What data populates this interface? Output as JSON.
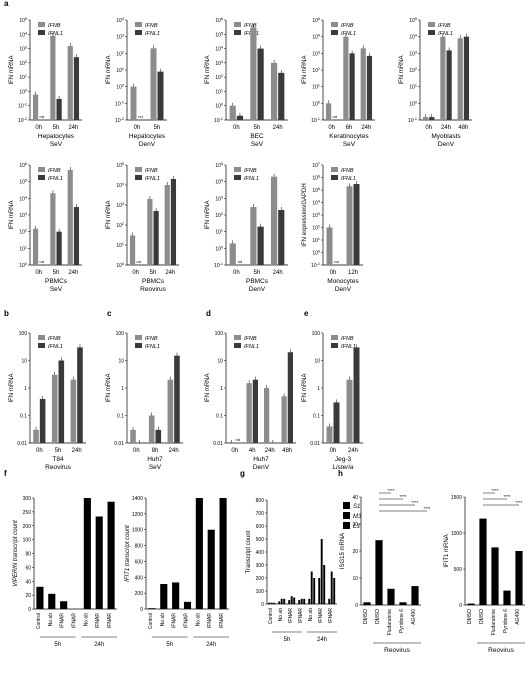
{
  "colors": {
    "ifnb": "#8c8c8c",
    "ifnl1": "#3a3a3a",
    "bar_black": "#000000",
    "axis": "#000000"
  },
  "chart_data": [
    {
      "id": "a1",
      "type": "bar",
      "panel_label": "a",
      "ylabel": "IFN mRNA",
      "ylim": [
        0.01,
        100000
      ],
      "log": true,
      "yticks": [
        "10^-2",
        "10^-1",
        "10^0",
        "10^1",
        "10^2",
        "10^3",
        "10^4",
        "10^5"
      ],
      "categories": [
        "0h",
        "5h",
        "24h"
      ],
      "caption": [
        "Hepatocytes",
        "SeV"
      ],
      "legend": [
        "IFNB",
        "IFNL1"
      ],
      "series": [
        {
          "name": "IFNB",
          "values": [
            0.6,
            8000,
            1500
          ]
        },
        {
          "name": "IFNL1",
          "values": [
            null,
            0.3,
            250
          ]
        }
      ],
      "annotations": [
        "nd",
        "ns"
      ]
    },
    {
      "id": "a2",
      "type": "bar",
      "ylabel": "IFN mRNA",
      "ylim": [
        0.01,
        10000
      ],
      "log": true,
      "categories": [
        "0h",
        "5h"
      ],
      "caption": [
        "Hepatocytes",
        "DenV"
      ],
      "legend": [
        "IFNB",
        "IFNL1"
      ],
      "series": [
        {
          "name": "IFNB",
          "values": [
            1,
            200
          ]
        },
        {
          "name": "IFNL1",
          "values": [
            null,
            8
          ]
        }
      ],
      "annotations": [
        "nd"
      ]
    },
    {
      "id": "a3",
      "type": "bar",
      "ylabel": "IFN mRNA",
      "ylim": [
        0.1,
        1000000
      ],
      "log": true,
      "categories": [
        "0h",
        "5h",
        "24h"
      ],
      "caption": [
        "BEC",
        "SeV"
      ],
      "legend": [
        "IFNB",
        "IFNL1"
      ],
      "series": [
        {
          "name": "IFNB",
          "values": [
            1,
            300000,
            1000
          ]
        },
        {
          "name": "IFNL1",
          "values": [
            0.2,
            10000,
            200
          ]
        }
      ],
      "annotations": [
        "nd"
      ]
    },
    {
      "id": "a4",
      "type": "bar",
      "ylabel": "IFN mRNA",
      "ylim": [
        0.1,
        100000
      ],
      "log": true,
      "categories": [
        "0h",
        "6h",
        "24h"
      ],
      "caption": [
        "Keratinocytes",
        "SeV"
      ],
      "legend": [
        "IFNB",
        "IFNL1"
      ],
      "series": [
        {
          "name": "IFNB",
          "values": [
            1,
            10000,
            2000
          ]
        },
        {
          "name": "IFNL1",
          "values": [
            null,
            1000,
            700
          ]
        }
      ],
      "annotations": [
        "nd"
      ]
    },
    {
      "id": "a5",
      "type": "bar",
      "ylabel": "IFN mRNA",
      "ylim": [
        0.1,
        100000
      ],
      "log": true,
      "categories": [
        "0h",
        "24h",
        "48h"
      ],
      "caption": [
        "Myoblasts",
        "DenV"
      ],
      "legend": [
        "IFNB",
        "IFNL1"
      ],
      "series": [
        {
          "name": "IFNB",
          "values": [
            0.15,
            10000,
            8000
          ]
        },
        {
          "name": "IFNL1",
          "values": [
            0.15,
            1500,
            10000
          ]
        }
      ],
      "annotations": [
        "nd"
      ]
    },
    {
      "id": "a6",
      "type": "bar",
      "ylabel": "IFN mRNA",
      "ylim": [
        1,
        1000000
      ],
      "log": true,
      "categories": [
        "0h",
        "5h",
        "24h"
      ],
      "caption": [
        "PBMCs",
        "SeV"
      ],
      "legend": [
        "IFNB",
        "IFNL1"
      ],
      "series": [
        {
          "name": "IFNB",
          "values": [
            150,
            20000,
            500000
          ]
        },
        {
          "name": "IFNL1",
          "values": [
            null,
            100,
            3000
          ]
        }
      ],
      "annotations": [
        "nd"
      ]
    },
    {
      "id": "a7",
      "type": "bar",
      "ylabel": "IFN mRNA",
      "ylim": [
        1,
        100000
      ],
      "log": true,
      "categories": [
        "0h",
        "5h",
        "24h"
      ],
      "caption": [
        "PBMCs",
        "Reovirus"
      ],
      "legend": [
        "IFNB",
        "IFNL1"
      ],
      "series": [
        {
          "name": "IFNB",
          "values": [
            30,
            2000,
            10000
          ]
        },
        {
          "name": "IFNL1",
          "values": [
            null,
            500,
            20000
          ]
        }
      ],
      "annotations": [
        "nd",
        "ns"
      ]
    },
    {
      "id": "a8",
      "type": "bar",
      "ylabel": "IFN mRNA",
      "ylim": [
        0.1,
        100000
      ],
      "log": true,
      "categories": [
        "0h",
        "5h",
        "24h"
      ],
      "caption": [
        "PBMCs",
        "DenV"
      ],
      "legend": [
        "IFNB",
        "IFNL1"
      ],
      "series": [
        {
          "name": "IFNB",
          "values": [
            2,
            300,
            20000
          ]
        },
        {
          "name": "IFNL1",
          "values": [
            null,
            20,
            200
          ]
        }
      ],
      "annotations": [
        "nd"
      ]
    },
    {
      "id": "a9",
      "type": "bar",
      "ylabel": "IFN expression/GAPDH",
      "ylim": [
        0.1,
        10000000
      ],
      "log": true,
      "categories": [
        "0h",
        "12h"
      ],
      "caption": [
        "Monocytes",
        "DenV"
      ],
      "legend": [
        "IFNB",
        "IFNL1"
      ],
      "series": [
        {
          "name": "IFNB",
          "values": [
            100,
            200000
          ]
        },
        {
          "name": "IFNL1",
          "values": [
            null,
            300000
          ]
        }
      ],
      "annotations": [
        "nd"
      ]
    },
    {
      "id": "b",
      "type": "bar",
      "panel_label": "b",
      "ylabel": "IFN mRNA",
      "ylim": [
        0.01,
        100
      ],
      "log": true,
      "yticks": [
        "0.01",
        "0.1",
        "1",
        "10",
        "100"
      ],
      "categories": [
        "0h",
        "5h",
        "24h"
      ],
      "caption": [
        "T84",
        "Reovirus"
      ],
      "legend": [
        "IFNB",
        "IFNL1"
      ],
      "series": [
        {
          "name": "IFNB",
          "values": [
            0.03,
            3,
            2
          ]
        },
        {
          "name": "IFNL1",
          "values": [
            0.4,
            10,
            30
          ]
        }
      ]
    },
    {
      "id": "c",
      "type": "bar",
      "panel_label": "c",
      "ylabel": "IFN mRNA",
      "ylim": [
        0.01,
        100
      ],
      "log": true,
      "yticks": [
        "0.01",
        "0.1",
        "1",
        "10",
        "100"
      ],
      "categories": [
        "0h",
        "8h",
        "24h"
      ],
      "caption": [
        "Huh7",
        "SeV"
      ],
      "legend": [
        "IFNB",
        "IFNL1"
      ],
      "series": [
        {
          "name": "IFNB",
          "values": [
            0.03,
            0.1,
            2
          ]
        },
        {
          "name": "IFNL1",
          "values": [
            0.008,
            0.03,
            15
          ]
        }
      ]
    },
    {
      "id": "d",
      "type": "bar",
      "panel_label": "d",
      "ylabel": "IFN mRNA",
      "ylim": [
        0.01,
        100
      ],
      "log": true,
      "yticks": [
        "0.01",
        "0.1",
        "1",
        "10",
        "100"
      ],
      "categories": [
        "0h",
        "4h",
        "24h",
        "48h"
      ],
      "caption": [
        "Huh7",
        "DenV"
      ],
      "legend": [
        "IFNB",
        "IFNL1"
      ],
      "series": [
        {
          "name": "IFNB",
          "values": [
            0.01,
            1.5,
            1,
            0.5
          ]
        },
        {
          "name": "IFNL1",
          "values": [
            null,
            2,
            0.01,
            20
          ]
        }
      ],
      "annotations": [
        "nd",
        "ns"
      ]
    },
    {
      "id": "e",
      "type": "bar",
      "panel_label": "e",
      "ylabel": "IFN mRNA",
      "ylim": [
        0.01,
        100
      ],
      "log": true,
      "yticks": [
        "0.01",
        "0.1",
        "1",
        "10",
        "100"
      ],
      "categories": [
        "0h",
        "24h"
      ],
      "caption": [
        "Jeg-3",
        "Listeria"
      ],
      "legend": [
        "IFNB",
        "IFNL1"
      ],
      "series": [
        {
          "name": "IFNB",
          "values": [
            0.04,
            2
          ]
        },
        {
          "name": "IFNL1",
          "values": [
            0.3,
            30
          ]
        }
      ]
    },
    {
      "id": "f1",
      "type": "bar",
      "panel_label": "f",
      "ylabel": "VIPERIN transcript count",
      "categories": [
        "Control",
        "No ab",
        "IFNAR",
        "IFNAR",
        "No ab",
        "IFNAR",
        "IFNAR"
      ],
      "groups": [
        "5h",
        "24h"
      ],
      "yticks": [
        "0",
        "20",
        "40",
        "60",
        "80",
        "100",
        "200",
        "250",
        "300"
      ],
      "values": [
        60,
        41,
        21,
        null,
        300,
        250,
        290
      ]
    },
    {
      "id": "f2",
      "type": "bar",
      "ylabel": "IFIT1 transcript count",
      "categories": [
        "Control",
        "No ab",
        "IFNAR",
        "IFNAR",
        "No ab",
        "IFNAR",
        "IFNAR"
      ],
      "groups": [
        "5h",
        "24h"
      ],
      "yticks": [
        "0",
        "200",
        "400",
        "600",
        "800",
        "1000",
        "1200",
        "1400"
      ],
      "values": [
        10,
        315,
        335,
        90,
        1400,
        1000,
        1400
      ]
    },
    {
      "id": "g",
      "type": "bar",
      "panel_label": "g",
      "ylabel": "Transcript count",
      "categories": [
        "Control",
        "No ab",
        "IFNAR",
        "IFNAR",
        "No ab",
        "IFNAR",
        "IFNAR"
      ],
      "groups": [
        "5h",
        "24h"
      ],
      "yticks": [
        "0",
        "100",
        "200",
        "300",
        "400",
        "500",
        "600",
        "700",
        "800"
      ],
      "series": [
        {
          "name": "S1",
          "values": [
            10,
            20,
            30,
            30,
            40,
            200,
            40
          ]
        },
        {
          "name": "M3",
          "values": [
            10,
            40,
            60,
            40,
            250,
            500,
            250
          ]
        },
        {
          "name": "L3",
          "values": [
            10,
            40,
            50,
            40,
            200,
            300,
            200
          ]
        }
      ]
    },
    {
      "id": "h1",
      "type": "bar",
      "panel_label": "h",
      "ylabel": "ISG15 mRNA",
      "categories": [
        "DMSO",
        "DMSO",
        "Fludarabine",
        "Pyridone 6",
        "AG490"
      ],
      "caption": [
        "Reovirus"
      ],
      "yticks": [
        "0",
        "10",
        "20",
        "30",
        "40"
      ],
      "ylim": [
        0,
        40
      ],
      "values": [
        1,
        24,
        6,
        1,
        7
      ],
      "annotations": [
        "****",
        "****",
        "****",
        "****"
      ]
    },
    {
      "id": "h2",
      "type": "bar",
      "ylabel": "IFIT1 mRNA",
      "categories": [
        "DMSO",
        "DMSO",
        "Fludarabine",
        "Pyridone 6",
        "AG490"
      ],
      "caption": [
        "Reovirus"
      ],
      "yticks": [
        "0",
        "500",
        "1000",
        "1500"
      ],
      "ylim": [
        0,
        1500
      ],
      "values": [
        20,
        1200,
        800,
        200,
        750
      ],
      "annotations": [
        "****",
        "****",
        "****"
      ]
    }
  ]
}
